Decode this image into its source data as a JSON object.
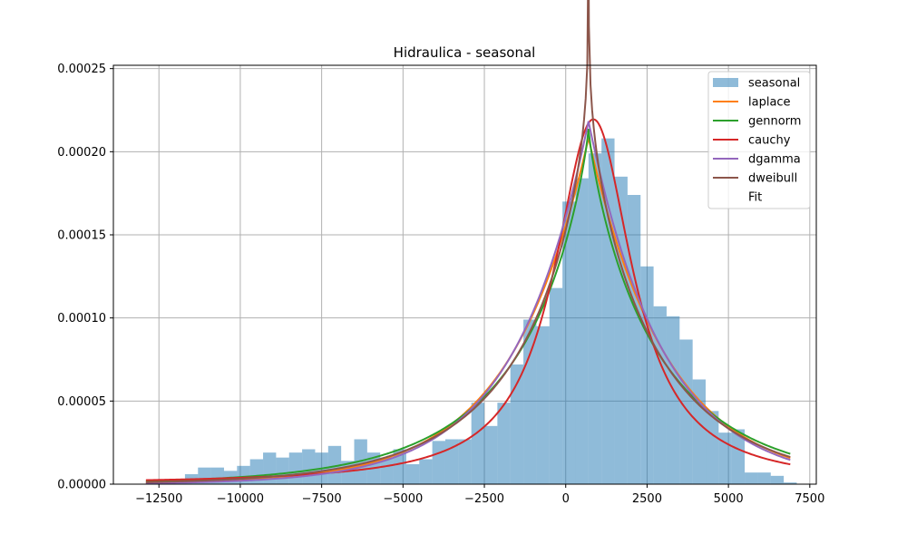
{
  "chart_data": {
    "type": "histogram",
    "title": "Hidraulica - seasonal",
    "xlabel": "",
    "ylabel": "",
    "xlim": [
      -13900,
      7700
    ],
    "ylim": [
      0,
      0.000252
    ],
    "grid": true,
    "legend_position": "top-right",
    "x_ticks": [
      -12500,
      -10000,
      -7500,
      -5000,
      -2500,
      0,
      2500,
      5000,
      7500
    ],
    "x_tick_labels": [
      "−12500",
      "−10000",
      "−7500",
      "−5000",
      "−2500",
      "0",
      "2500",
      "5000",
      "7500"
    ],
    "y_ticks": [
      0,
      5e-05,
      0.0001,
      0.00015,
      0.0002,
      0.00025
    ],
    "y_tick_labels": [
      "0.00000",
      "0.00005",
      "0.00010",
      "0.00015",
      "0.00020",
      "0.00025"
    ],
    "histogram": {
      "name": "seasonal",
      "color": "#1f77b4",
      "bin_edges": [
        -12900,
        -12500,
        -12100,
        -11700,
        -11300,
        -10900,
        -10500,
        -10100,
        -9700,
        -9300,
        -8900,
        -8500,
        -8100,
        -7700,
        -7300,
        -6900,
        -6500,
        -6100,
        -5700,
        -5300,
        -4900,
        -4500,
        -4100,
        -3700,
        -3300,
        -2900,
        -2500,
        -2100,
        -1700,
        -1300,
        -900,
        -500,
        -100,
        300,
        700,
        1100,
        1500,
        1900,
        2300,
        2700,
        3100,
        3500,
        3900,
        4300,
        4700,
        5100,
        5500,
        5900,
        6300,
        6700,
        7100
      ],
      "values": [
        1e-06,
        1e-06,
        1e-06,
        6e-06,
        1e-05,
        1e-05,
        8e-06,
        1.1e-05,
        1.5e-05,
        1.9e-05,
        1.6e-05,
        1.9e-05,
        2.1e-05,
        1.9e-05,
        2.3e-05,
        1.4e-05,
        2.7e-05,
        1.9e-05,
        1.6e-05,
        2.1e-05,
        1.2e-05,
        1.5e-05,
        2.6e-05,
        2.7e-05,
        2.7e-05,
        4.9e-05,
        3.5e-05,
        4.9e-05,
        7.2e-05,
        9.9e-05,
        9.5e-05,
        0.000118,
        0.00017,
        0.000184,
        0.000199,
        0.000208,
        0.000185,
        0.000174,
        0.000131,
        0.000107,
        0.000101,
        8.7e-05,
        6.3e-05,
        4.4e-05,
        3.1e-05,
        3.3e-05,
        7e-06,
        7e-06,
        5e-06,
        1e-06
      ]
    },
    "fit_curves": [
      {
        "name": "laplace",
        "color": "#ff7f0e",
        "type": "laplace",
        "loc": 700,
        "scale": 2400
      },
      {
        "name": "gennorm",
        "color": "#2ca02c",
        "type": "gennorm",
        "loc": 700,
        "scale": 2150,
        "beta": 0.85
      },
      {
        "name": "cauchy",
        "color": "#d62728",
        "type": "cauchy",
        "loc": 850,
        "scale": 1450
      },
      {
        "name": "dgamma",
        "color": "#9467bd",
        "type": "dgamma",
        "loc": 700,
        "scale": 2290,
        "a": 1.0
      },
      {
        "name": "dweibull",
        "color": "#8c564b",
        "type": "dweibull",
        "loc": 700,
        "scale": 2420,
        "c": 0.93
      }
    ],
    "legend": [
      "seasonal",
      "laplace",
      "gennorm",
      "cauchy",
      "dgamma",
      "dweibull",
      "Fit"
    ],
    "curve_x_range": [
      -12900,
      6900
    ]
  }
}
